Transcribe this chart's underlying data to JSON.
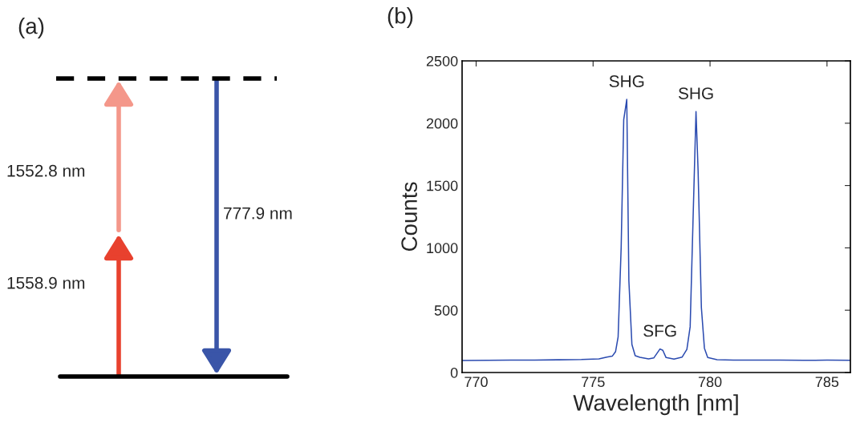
{
  "chart_data": [
    {
      "type": "other",
      "title": "(a)",
      "annotations": [
        "1552.8 nm",
        "1558.9 nm",
        "777.9 nm"
      ]
    },
    {
      "type": "line",
      "title": "(b)",
      "xlabel": "Wavelength [nm]",
      "ylabel": "Counts",
      "xlim": [
        769.4,
        786
      ],
      "ylim": [
        0,
        2500
      ],
      "xticks": [
        770,
        775,
        780,
        785
      ],
      "yticks": [
        0,
        500,
        1000,
        1500,
        2000,
        2500
      ],
      "grid": false,
      "legend": false,
      "annotations": [
        {
          "text": "SHG",
          "x": 776.44,
          "y": 2191
        },
        {
          "text": "SFG",
          "x": 777.86,
          "y": 189
        },
        {
          "text": "SHG",
          "x": 779.4,
          "y": 2094
        }
      ],
      "series": [
        {
          "color": "#2b4bb0",
          "x": [
            769.4,
            770.5,
            771.5,
            772.5,
            773.5,
            774.5,
            775.25,
            775.59,
            775.82,
            775.96,
            776.07,
            776.2,
            776.31,
            776.44,
            776.53,
            776.66,
            776.8,
            777.0,
            777.37,
            777.6,
            777.86,
            777.98,
            778.12,
            778.46,
            778.81,
            779.01,
            779.15,
            779.27,
            779.4,
            779.49,
            779.63,
            779.76,
            779.9,
            780.3,
            781,
            782,
            783,
            784,
            785,
            786
          ],
          "values": [
            97,
            98,
            100,
            99,
            102,
            104,
            109,
            124,
            131,
            167,
            285,
            1000,
            2028,
            2191,
            736,
            225,
            135,
            122,
            110,
            118,
            189,
            178,
            120,
            107,
            124,
            185,
            367,
            1200,
            2094,
            1616,
            521,
            195,
            120,
            103,
            100,
            99,
            100,
            98,
            99,
            98
          ]
        }
      ]
    }
  ]
}
